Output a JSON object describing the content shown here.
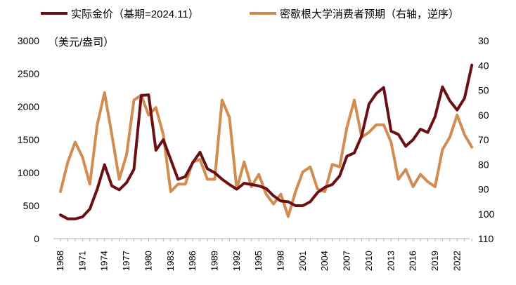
{
  "chart_data": {
    "type": "line",
    "unit_label": "（美元/盎司）",
    "x": [
      1968,
      1969,
      1970,
      1971,
      1972,
      1973,
      1974,
      1975,
      1976,
      1977,
      1978,
      1979,
      1980,
      1981,
      1982,
      1983,
      1984,
      1985,
      1986,
      1987,
      1988,
      1989,
      1990,
      1991,
      1992,
      1993,
      1994,
      1995,
      1996,
      1997,
      1998,
      1999,
      2000,
      2001,
      2002,
      2003,
      2004,
      2005,
      2006,
      2007,
      2008,
      2009,
      2010,
      2011,
      2012,
      2013,
      2014,
      2015,
      2016,
      2017,
      2018,
      2019,
      2020,
      2021,
      2022,
      2023,
      2024
    ],
    "x_tick_labels": [
      "1968",
      "1971",
      "1974",
      "1977",
      "1980",
      "1983",
      "1986",
      "1989",
      "1992",
      "1995",
      "1998",
      "2001",
      "2004",
      "2007",
      "2010",
      "2013",
      "2016",
      "2019",
      "2022"
    ],
    "left_axis": {
      "min": 0,
      "max": 3000,
      "ticks": [
        "0",
        "500",
        "1000",
        "1500",
        "2000",
        "2500",
        "3000"
      ]
    },
    "right_axis": {
      "min": 30,
      "max": 110,
      "inverted": true,
      "ticks": [
        "30",
        "40",
        "50",
        "60",
        "70",
        "80",
        "90",
        "100",
        "110"
      ]
    },
    "series": [
      {
        "name": "实际金价（基期=2024.11）",
        "axis": "left",
        "color": "#6b0f12",
        "values": [
          360,
          300,
          300,
          330,
          450,
          750,
          1120,
          800,
          740,
          850,
          1050,
          2170,
          2180,
          1340,
          1500,
          1200,
          900,
          940,
          1150,
          1310,
          1060,
          1000,
          900,
          820,
          750,
          840,
          820,
          800,
          760,
          650,
          570,
          560,
          500,
          500,
          560,
          700,
          780,
          820,
          950,
          1250,
          1300,
          1560,
          2040,
          2200,
          2290,
          1630,
          1580,
          1400,
          1500,
          1660,
          1610,
          1850,
          2300,
          2090,
          1950,
          2130,
          2630
        ]
      },
      {
        "name": "密歇根大学消费者预期（右轴，逆序）",
        "axis": "right",
        "color": "#d18c52",
        "values": [
          91,
          79,
          71,
          77,
          88,
          64,
          51,
          68,
          86,
          76,
          54,
          52,
          60,
          57,
          68,
          91,
          88,
          88,
          79,
          78,
          86,
          86,
          54,
          61,
          90,
          79,
          89,
          84,
          92,
          96,
          92,
          101,
          91,
          83,
          81,
          90,
          91,
          80,
          81,
          65,
          54,
          69,
          67,
          64,
          64,
          71,
          86,
          82,
          89,
          84,
          87,
          89,
          74,
          69,
          60,
          68,
          73
        ]
      }
    ]
  }
}
